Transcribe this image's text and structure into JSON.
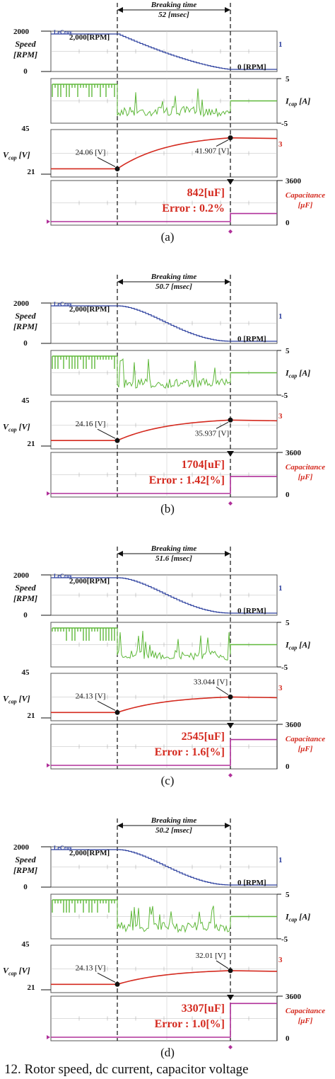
{
  "chart_data": [
    {
      "type": "line",
      "panel_label": "(a)",
      "breaking_time_label": "Breaking time",
      "breaking_time_value": "52 [msec]",
      "speed": {
        "axis_label": [
          "Speed",
          "[RPM]"
        ],
        "ticks": [
          "2000",
          "0"
        ],
        "start_label": "2,000[RPM]",
        "end_label": "0 [RPM]",
        "start_rpm": 2000,
        "end_rpm": 0,
        "shape": "concave"
      },
      "current": {
        "axis_label": "I_cap [A]",
        "ticks": [
          "5",
          "-5"
        ],
        "on_mean": 0.62,
        "burst_mean": 0.42,
        "off_level": 0.5
      },
      "voltage": {
        "axis_label": "V_cap [V]",
        "ticks": [
          "45",
          "21"
        ],
        "ylim": [
          21,
          45
        ],
        "start_label": "24.06 [V]",
        "start_v": 24.06,
        "end_label": "41.907 [V]",
        "end_v": 41.907,
        "end_label_side": "below"
      },
      "capacitance": {
        "axis_label": [
          "Capacitance",
          "[μF]"
        ],
        "ticks": [
          "3600",
          "0"
        ],
        "ylim": [
          0,
          3600
        ],
        "value_label": "842[uF]",
        "value": 842,
        "error_label": "Error : 0.2%"
      }
    },
    {
      "type": "line",
      "panel_label": "(b)",
      "breaking_time_label": "Breaking time",
      "breaking_time_value": "50.7 [msec]",
      "speed": {
        "axis_label": [
          "Speed",
          "[RPM]"
        ],
        "ticks": [
          "2000",
          "0"
        ],
        "start_label": "2,000[RPM]",
        "end_label": "0 [RPM]",
        "start_rpm": 2000,
        "end_rpm": 0,
        "shape": "sigmoid"
      },
      "current": {
        "axis_label": "I_cap [A]",
        "ticks": [
          "5",
          "-5"
        ],
        "on_mean": 0.62,
        "burst_mean": 0.35,
        "off_level": 0.5
      },
      "voltage": {
        "axis_label": "V_cap [V]",
        "ticks": [
          "45",
          "21"
        ],
        "ylim": [
          21,
          45
        ],
        "start_label": "24.16 [V]",
        "start_v": 24.16,
        "end_label": "35.937 [V]",
        "end_v": 35.937,
        "end_label_side": "below"
      },
      "capacitance": {
        "axis_label": [
          "Capacitance",
          "[μF]"
        ],
        "ticks": [
          "3600",
          "0"
        ],
        "ylim": [
          0,
          3600
        ],
        "value_label": "1704[uF]",
        "value": 1704,
        "error_label": "Error : 1.42[%]"
      }
    },
    {
      "type": "line",
      "panel_label": "(c)",
      "breaking_time_label": "Breaking time",
      "breaking_time_value": "51.6 [msec]",
      "speed": {
        "axis_label": [
          "Speed",
          "[RPM]"
        ],
        "ticks": [
          "2000",
          "0"
        ],
        "start_label": "2,000[RPM]",
        "end_label": "0 [RPM]",
        "start_rpm": 2000,
        "end_rpm": 0,
        "shape": "sigmoid"
      },
      "current": {
        "axis_label": "I_cap [A]",
        "ticks": [
          "5",
          "-5"
        ],
        "on_mean": 0.62,
        "burst_mean": 0.4,
        "off_level": 0.5
      },
      "voltage": {
        "axis_label": "V_cap [V]",
        "ticks": [
          "45",
          "21"
        ],
        "ylim": [
          21,
          45
        ],
        "start_label": "24.13 [V]",
        "start_v": 24.13,
        "end_label": "33.044 [V]",
        "end_v": 33.044,
        "end_label_side": "above"
      },
      "capacitance": {
        "axis_label": [
          "Capacitance",
          "[μF]"
        ],
        "ticks": [
          "3600",
          "0"
        ],
        "ylim": [
          0,
          3600
        ],
        "value_label": "2545[uF]",
        "value": 2545,
        "error_label": "Error : 1.6[%]"
      }
    },
    {
      "type": "line",
      "panel_label": "(d)",
      "breaking_time_label": "Breaking time",
      "breaking_time_value": "50.2 [msec]",
      "speed": {
        "axis_label": [
          "Speed",
          "[RPM]"
        ],
        "ticks": [
          "2000",
          "0"
        ],
        "start_label": "2,000[RPM]",
        "end_label": "0 [RPM]",
        "start_rpm": 2000,
        "end_rpm": 0,
        "shape": "sigmoid"
      },
      "current": {
        "axis_label": "I_cap [A]",
        "ticks": [
          "5",
          "-5"
        ],
        "on_mean": 0.62,
        "burst_mean": 0.4,
        "off_level": 0.5
      },
      "voltage": {
        "axis_label": "V_cap [V]",
        "ticks": [
          "45",
          "21"
        ],
        "ylim": [
          21,
          45
        ],
        "start_label": "24.13 [V]",
        "start_v": 24.13,
        "end_label": "32.01 [V]",
        "end_v": 32.01,
        "end_label_side": "above"
      },
      "capacitance": {
        "axis_label": [
          "Capacitance",
          "[μF]"
        ],
        "ticks": [
          "3600",
          "0"
        ],
        "ylim": [
          0,
          3600
        ],
        "value_label": "3307[uF]",
        "value": 3307,
        "error_label": "Error : 1.0[%]"
      }
    }
  ],
  "scope_brand": "LeCroy",
  "caption": "12. Rotor speed, dc current, capacitor voltage",
  "colors": {
    "speed": "#2b3f9e",
    "current": "#5fb83a",
    "voltage": "#d42a1f",
    "capacitance": "#b0309a",
    "annotation_red": "#d42a1f"
  }
}
